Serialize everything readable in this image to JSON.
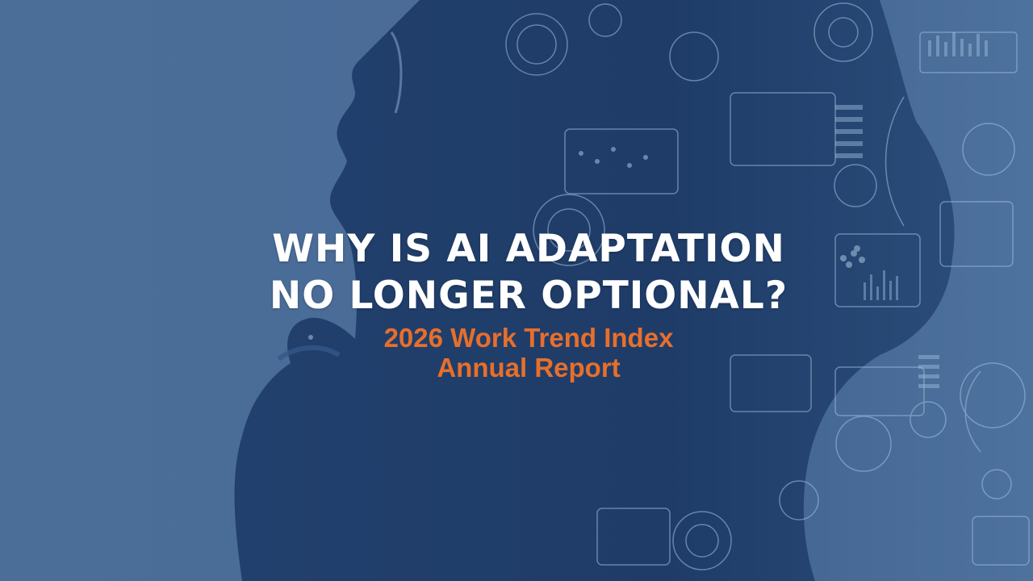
{
  "slide": {
    "title_line1": "WHY IS AI ADAPTATION",
    "title_line2": "NO LONGER OPTIONAL?",
    "subtitle_line1": "2026 Work Trend Index",
    "subtitle_line2": "Annual Report"
  },
  "colors": {
    "background": "#4a6d98",
    "silhouette": "#213f6c",
    "title_text": "#ffffff",
    "subtitle_text": "#e76f2b",
    "hud_accent": "#9fc0e0"
  },
  "background_image": {
    "subject": "profile-silhouette-with-digital-hud-overlay-icon"
  }
}
